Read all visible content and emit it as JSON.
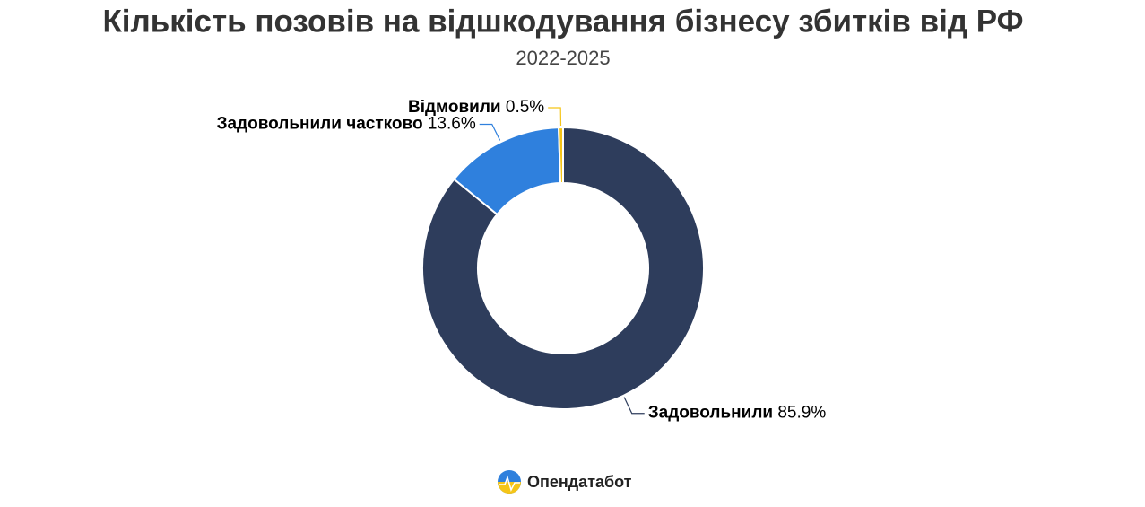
{
  "chart_data": {
    "type": "donut",
    "title": "Кількість позовів на відшкодування бізнесу збитків від РФ",
    "subtitle": "2022-2025",
    "categories": [
      "Задовольнили",
      "Задовольнили частково",
      "Відмовили"
    ],
    "values": [
      85.9,
      13.6,
      0.5
    ],
    "value_labels": [
      "85.9%",
      "13.6%",
      "0.5%"
    ],
    "colors": [
      "#2e3d5c",
      "#2f80dd",
      "#f5c518"
    ],
    "source": "Опендатабот"
  }
}
